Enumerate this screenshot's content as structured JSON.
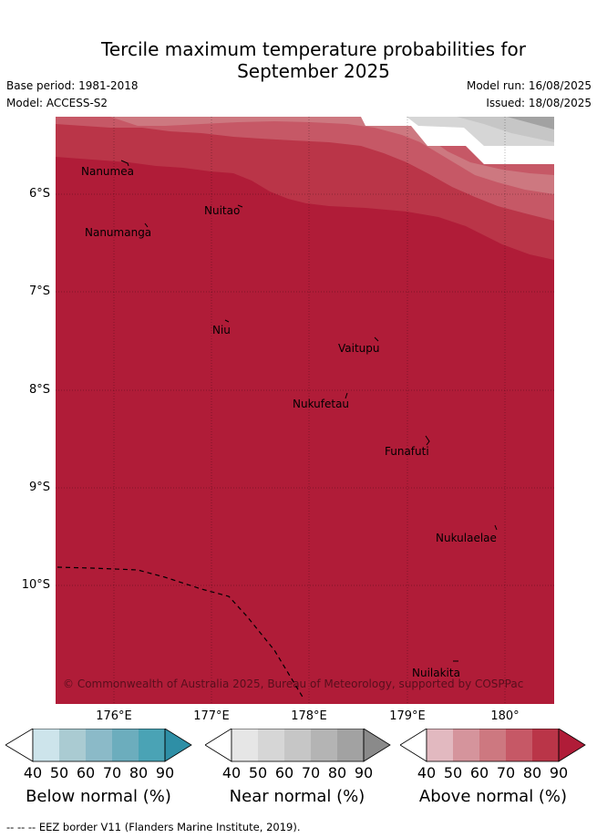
{
  "title_line1": "Tercile maximum temperature probabilities for",
  "title_line2": "September 2025",
  "base_period": "Base period: 1981-2018",
  "model": "Model: ACCESS-S2",
  "model_run": "Model run: 16/08/2025",
  "issued": "Issued: 18/08/2025",
  "lat_labels": [
    "6°S",
    "7°S",
    "8°S",
    "9°S",
    "10°S"
  ],
  "lon_labels": [
    "176°E",
    "177°E",
    "178°E",
    "179°E",
    "180°"
  ],
  "places": {
    "nanumea": "Nanumea",
    "nuitao": "Nuitao",
    "nanumanga": "Nanumanga",
    "niu": "Niu",
    "vaitupu": "Vaitupu",
    "nukufetau": "Nukufetau",
    "funafuti": "Funafuti",
    "nukulaelae": "Nukulaelae",
    "nuilakita": "Nuilakita"
  },
  "copyright": "© Commonwealth of Australia 2025, Bureau of Meteorology, supported by COSPPac",
  "colorbars": {
    "below": {
      "title": "Below normal (%)",
      "ticks": [
        "40",
        "50",
        "60",
        "70",
        "80",
        "90"
      ],
      "colors": [
        "#ffffff",
        "#cde4eb",
        "#aacbd2",
        "#8bbac8",
        "#6cadbd",
        "#4aa3b5",
        "#2e8fa6"
      ]
    },
    "near": {
      "title": "Near normal (%)",
      "ticks": [
        "40",
        "50",
        "60",
        "70",
        "80",
        "90"
      ],
      "colors": [
        "#ffffff",
        "#e6e6e6",
        "#d6d6d6",
        "#c6c6c6",
        "#b4b4b4",
        "#a2a2a2",
        "#8a8a8a"
      ]
    },
    "above": {
      "title": "Above normal (%)",
      "ticks": [
        "40",
        "50",
        "60",
        "70",
        "80",
        "90"
      ],
      "colors": [
        "#ffffff",
        "#e2b9c0",
        "#d5949c",
        "#cd7880",
        "#c65866",
        "#ba3548",
        "#b01c38"
      ]
    }
  },
  "map_colors": {
    "above_90": "#b01c38",
    "above_80": "#ba3548",
    "above_70": "#c65866",
    "above_60": "#cd7880",
    "near_50": "#d6d6d6",
    "near_60": "#c6c6c6",
    "near_80": "#a2a2a2"
  },
  "eez_note": "--  --  -- EEZ border V11 (Flanders Marine Institute, 2019)."
}
